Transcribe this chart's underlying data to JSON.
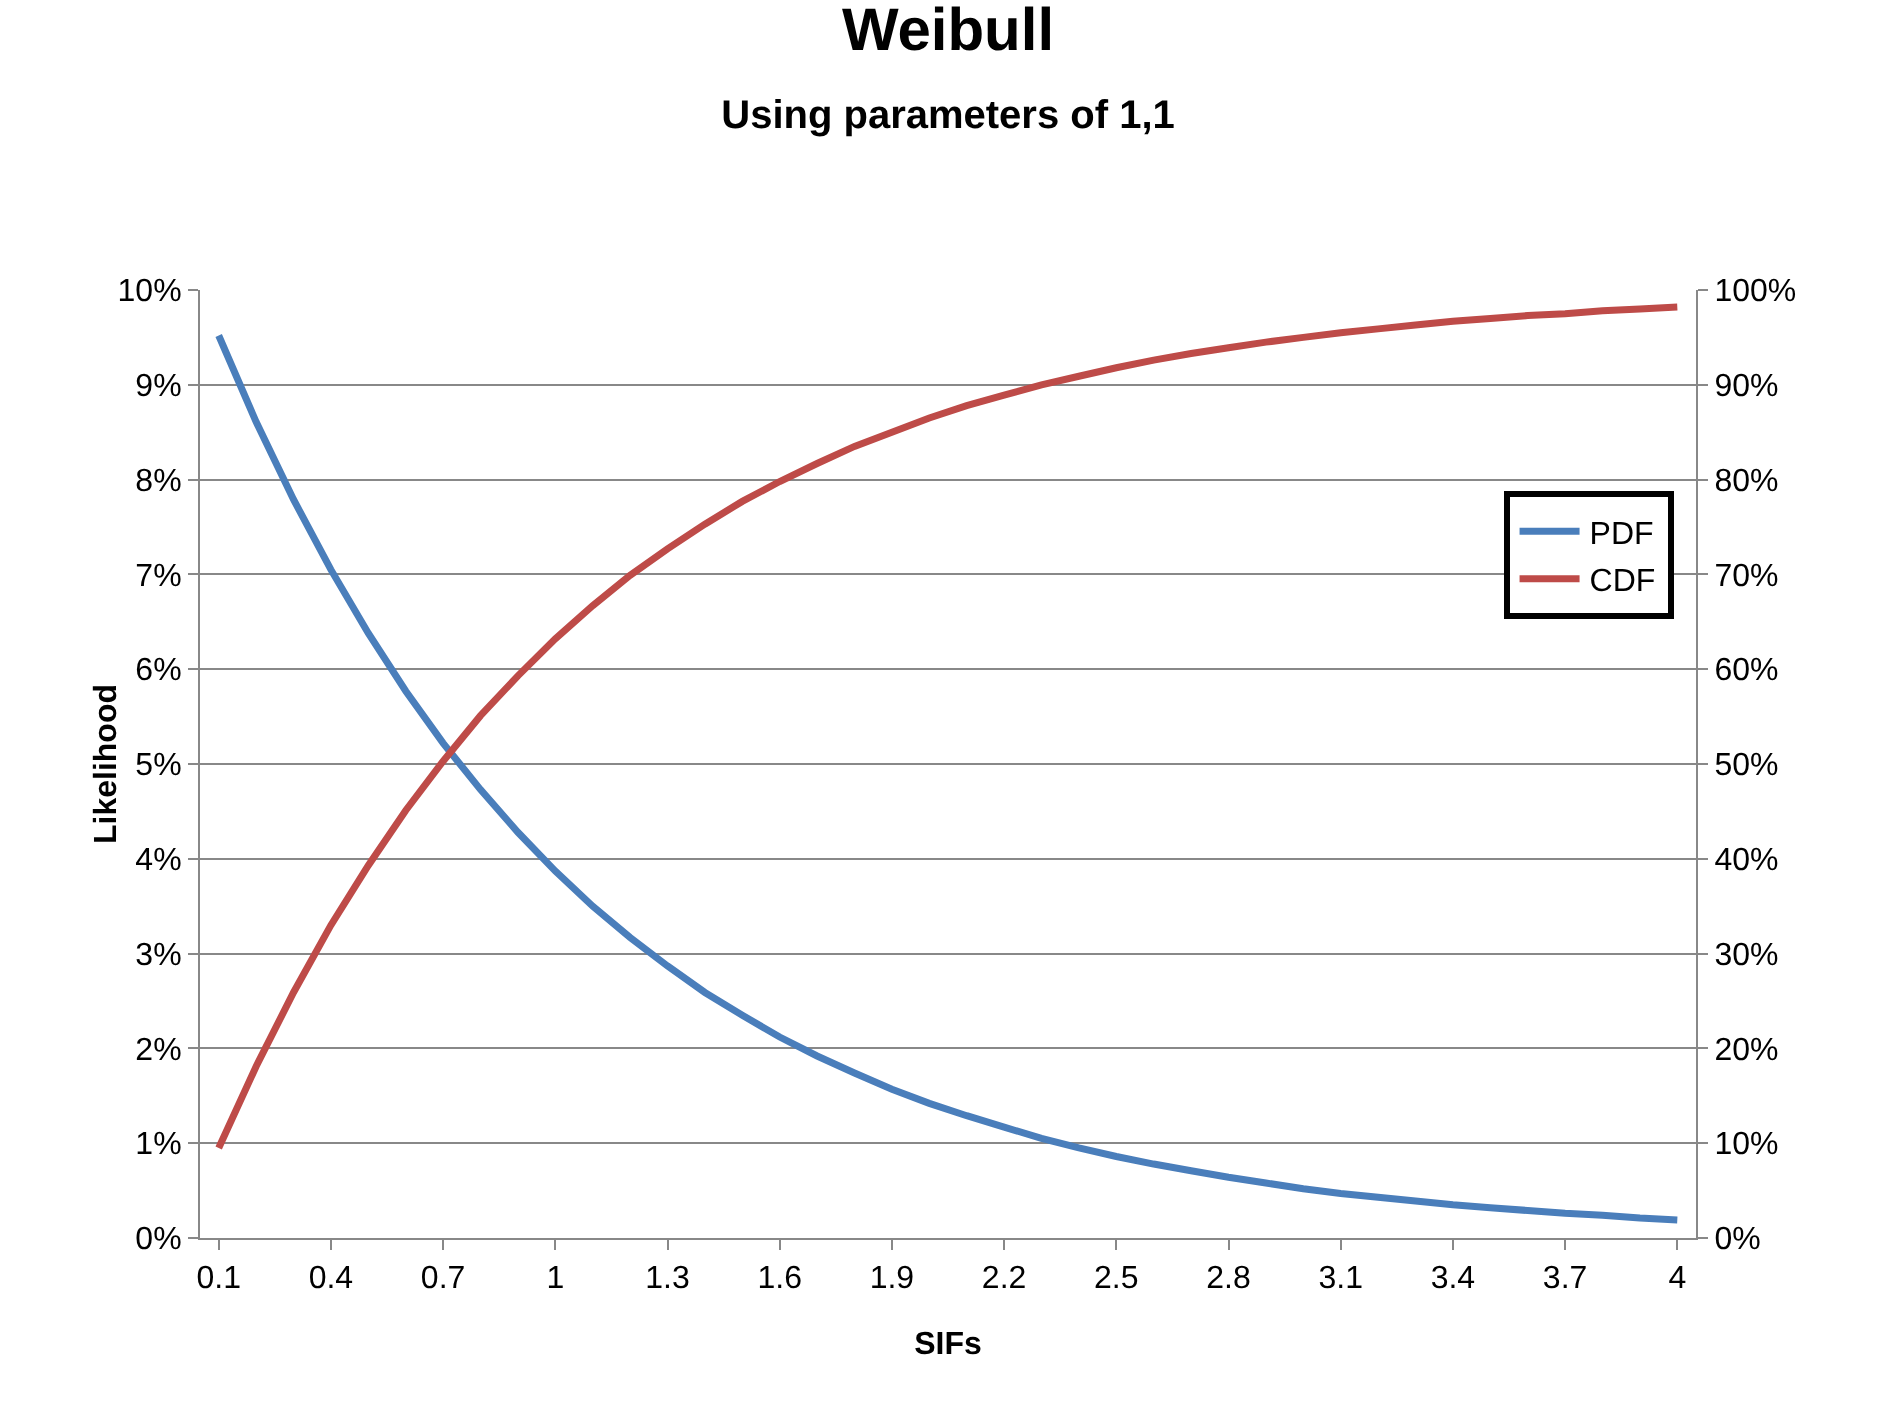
{
  "chart_data": {
    "type": "line",
    "title": "Weibull",
    "subtitle": "Using parameters of 1,1",
    "xlabel": "SIFs",
    "ylabel": "Likelihood",
    "categories": [
      "0.1",
      null,
      null,
      "0.4",
      null,
      null,
      "0.7",
      null,
      null,
      "1",
      null,
      null,
      "1.3",
      null,
      null,
      "1.6",
      null,
      null,
      "1.9",
      null,
      null,
      "2.2",
      null,
      null,
      "2.5",
      null,
      null,
      "2.8",
      null,
      null,
      "3.1",
      null,
      null,
      "3.4",
      null,
      null,
      "3.7",
      null,
      null,
      "4"
    ],
    "series": [
      {
        "name": "PDF",
        "color": "#4a7ebb",
        "values": [
          9.52,
          8.61,
          7.79,
          7.05,
          6.38,
          5.77,
          5.22,
          4.73,
          4.28,
          3.87,
          3.5,
          3.17,
          2.87,
          2.59,
          2.35,
          2.12,
          1.92,
          1.74,
          1.57,
          1.42,
          1.29,
          1.17,
          1.05,
          0.95,
          0.86,
          0.78,
          0.71,
          0.64,
          0.58,
          0.52,
          0.47,
          0.43,
          0.39,
          0.35,
          0.32,
          0.29,
          0.26,
          0.24,
          0.21,
          0.19
        ]
      },
      {
        "name": "CDF",
        "color": "#be4b48",
        "axis": "y2",
        "values": [
          9.5,
          18.1,
          25.9,
          33.0,
          39.3,
          45.1,
          50.3,
          55.1,
          59.3,
          63.2,
          66.7,
          69.9,
          72.7,
          75.3,
          77.7,
          79.8,
          81.7,
          83.5,
          85.0,
          86.5,
          87.8,
          88.9,
          90.0,
          90.9,
          91.8,
          92.6,
          93.3,
          93.9,
          94.5,
          95.0,
          95.5,
          95.9,
          96.3,
          96.7,
          97.0,
          97.3,
          97.5,
          97.8,
          98.0,
          98.2
        ]
      }
    ],
    "ylim": [
      0,
      10
    ],
    "yticks": [
      {
        "value": 0,
        "label": "0%"
      },
      {
        "value": 1,
        "label": "1%"
      },
      {
        "value": 2,
        "label": "2%"
      },
      {
        "value": 3,
        "label": "3%"
      },
      {
        "value": 4,
        "label": "4%"
      },
      {
        "value": 5,
        "label": "5%"
      },
      {
        "value": 6,
        "label": "6%"
      },
      {
        "value": 7,
        "label": "7%"
      },
      {
        "value": 8,
        "label": "8%"
      },
      {
        "value": 9,
        "label": "9%"
      },
      {
        "value": 10,
        "label": "10%"
      }
    ],
    "y2lim": [
      0,
      100
    ],
    "y2ticks": [
      {
        "value": 0,
        "label": "0%"
      },
      {
        "value": 10,
        "label": "10%"
      },
      {
        "value": 20,
        "label": "20%"
      },
      {
        "value": 30,
        "label": "30%"
      },
      {
        "value": 40,
        "label": "40%"
      },
      {
        "value": 50,
        "label": "50%"
      },
      {
        "value": 60,
        "label": "60%"
      },
      {
        "value": 70,
        "label": "70%"
      },
      {
        "value": 80,
        "label": "80%"
      },
      {
        "value": 90,
        "label": "90%"
      },
      {
        "value": 100,
        "label": "100%"
      }
    ],
    "grid": "y",
    "legend": "right",
    "marker": "none",
    "line_style": "solid"
  }
}
